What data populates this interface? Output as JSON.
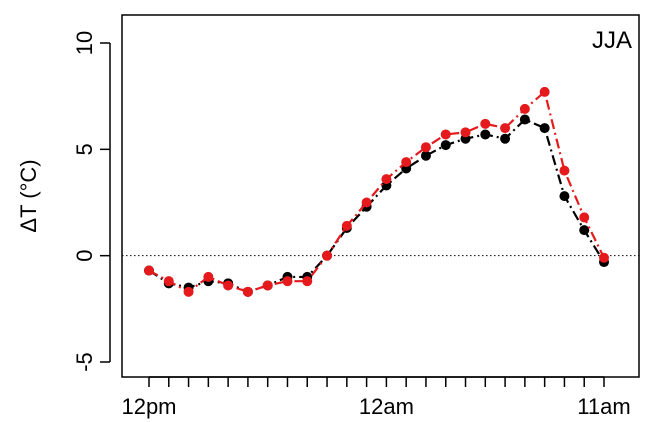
{
  "chart_data": {
    "type": "line",
    "title": "",
    "panel_label": "JJA",
    "ylabel": "ΔT (°C)",
    "xlabel": "",
    "x": [
      0,
      1,
      2,
      3,
      4,
      5,
      6,
      7,
      8,
      9,
      10,
      11,
      12,
      13,
      14,
      15,
      16,
      17,
      18,
      19,
      20,
      21,
      22,
      23
    ],
    "xlim": [
      0,
      23
    ],
    "x_tick_positions": [
      0,
      1,
      2,
      3,
      4,
      5,
      6,
      7,
      8,
      9,
      10,
      11,
      12,
      13,
      14,
      15,
      16,
      17,
      18,
      19,
      20,
      21,
      22,
      23
    ],
    "x_tick_labels": [
      {
        "x": 0,
        "label": "12pm"
      },
      {
        "x": 12,
        "label": "12am"
      },
      {
        "x": 23,
        "label": "11am"
      }
    ],
    "ylim": [
      -5,
      10
    ],
    "y_ticks": [
      -5,
      0,
      5,
      10
    ],
    "reference_line": {
      "y": 0,
      "style": "dotted"
    },
    "grid": false,
    "series": [
      {
        "color": "#000000",
        "line_style": "dashed",
        "values": [
          -0.7,
          -1.3,
          -1.5,
          -1.2,
          -1.3,
          -1.7,
          -1.4,
          -1.0,
          -1.0,
          0.0,
          1.3,
          2.3,
          3.3,
          4.1,
          4.7,
          5.2,
          5.5,
          5.7,
          5.5,
          6.4,
          6.0,
          2.8,
          1.2,
          -0.3
        ]
      },
      {
        "color": "#e41a1c",
        "line_style": "dashed",
        "values": [
          -0.7,
          -1.2,
          -1.7,
          -1.0,
          -1.4,
          -1.7,
          -1.4,
          -1.2,
          -1.2,
          0.0,
          1.4,
          2.5,
          3.6,
          4.4,
          5.1,
          5.7,
          5.8,
          6.2,
          6.0,
          6.9,
          7.7,
          4.0,
          1.8,
          -0.1
        ]
      }
    ]
  }
}
